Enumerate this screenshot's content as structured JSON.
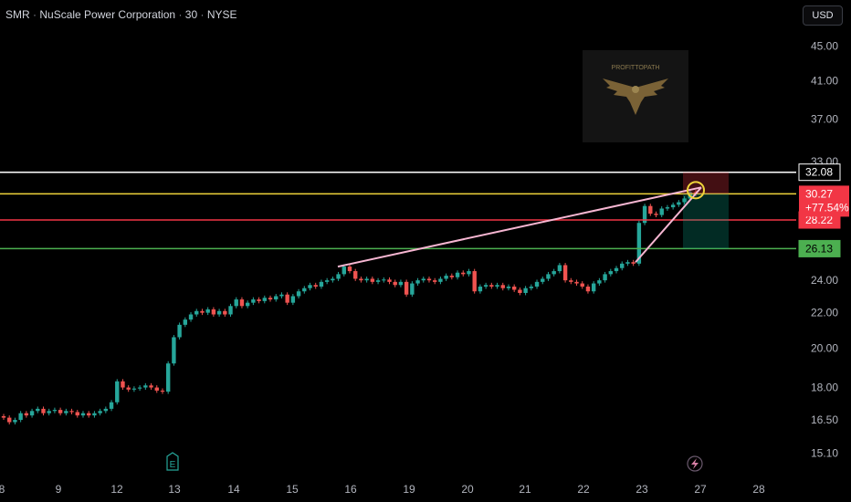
{
  "header": {
    "symbol": "SMR",
    "company": "NuScale Power Corporation",
    "interval": "30",
    "exchange": "NYSE",
    "separator": "·",
    "currency": "USD"
  },
  "watermark": {
    "text": "PROFITTOPATH"
  },
  "colors": {
    "up": "#26a69a",
    "down": "#ef5350",
    "line_white": "#ffffff",
    "line_yellow": "#f0d43a",
    "line_red": "#f23645",
    "line_green": "#4caf50",
    "trend": "#f7b6d2",
    "tag_price": "#f23645"
  },
  "chart_data": {
    "type": "candlestick",
    "y_scale": "log",
    "ylim": [
      14.6,
      48.5
    ],
    "y_ticks": [
      45.0,
      41.0,
      37.0,
      33.0,
      24.0,
      22.0,
      20.0,
      18.0,
      16.5,
      15.1
    ],
    "x_ticks": [
      {
        "label": "8",
        "t": 0
      },
      {
        "label": "9",
        "t": 62
      },
      {
        "label": "12",
        "t": 126
      },
      {
        "label": "13",
        "t": 189
      },
      {
        "label": "14",
        "t": 254
      },
      {
        "label": "15",
        "t": 318
      },
      {
        "label": "16",
        "t": 382
      },
      {
        "label": "19",
        "t": 446
      },
      {
        "label": "20",
        "t": 510
      },
      {
        "label": "21",
        "t": 573
      },
      {
        "label": "22",
        "t": 637
      },
      {
        "label": "23",
        "t": 701
      },
      {
        "label": "27",
        "t": 765
      },
      {
        "label": "28",
        "t": 829
      }
    ],
    "levels": [
      {
        "name": "stop",
        "value": 32.08,
        "label": "32.08",
        "color": "#ffffff"
      },
      {
        "name": "entry",
        "value": 30.27,
        "label": "30.27",
        "color": "#f0d43a"
      },
      {
        "name": "support",
        "value": 28.22,
        "label": "28.22",
        "color": "#f23645"
      },
      {
        "name": "target",
        "value": 26.13,
        "label": "26.13",
        "color": "#4caf50"
      }
    ],
    "last_price": {
      "value": 30.27,
      "label": "30.27",
      "change": "+77.54%"
    },
    "candles_closes": [
      16.6,
      16.4,
      16.5,
      16.8,
      16.7,
      16.9,
      17.0,
      16.8,
      16.9,
      16.95,
      16.8,
      16.9,
      16.85,
      16.7,
      16.8,
      16.7,
      16.8,
      16.9,
      17.0,
      17.3,
      18.3,
      18.0,
      17.9,
      17.95,
      18.0,
      18.1,
      18.0,
      17.85,
      17.8,
      19.2,
      20.6,
      21.3,
      21.6,
      21.9,
      22.1,
      22.0,
      22.2,
      21.9,
      22.1,
      21.9,
      22.4,
      22.8,
      22.4,
      22.6,
      22.8,
      22.7,
      22.9,
      22.8,
      23.0,
      23.1,
      22.6,
      23.0,
      23.3,
      23.5,
      23.7,
      23.6,
      23.9,
      24.0,
      24.1,
      24.4,
      24.9,
      24.6,
      24.1,
      24.0,
      24.1,
      23.9,
      24.0,
      24.05,
      23.9,
      23.7,
      23.9,
      23.1,
      23.8,
      24.0,
      24.1,
      24.0,
      23.9,
      24.1,
      24.3,
      24.2,
      24.5,
      24.4,
      24.6,
      23.3,
      23.6,
      23.7,
      23.6,
      23.7,
      23.5,
      23.6,
      23.4,
      23.2,
      23.5,
      23.6,
      23.9,
      24.1,
      24.4,
      24.6,
      25.0,
      24.0,
      23.9,
      23.8,
      23.6,
      23.3,
      23.8,
      24.0,
      24.4,
      24.6,
      24.8,
      25.1,
      25.2,
      25.1,
      28.0,
      29.3,
      28.7,
      28.6,
      29.1,
      29.2,
      29.4,
      29.6,
      29.9,
      30.4,
      30.27
    ],
    "trendlines": [
      {
        "from": {
          "t": 370,
          "v": 24.9
        },
        "to": {
          "t": 768,
          "v": 30.8
        }
      },
      {
        "from": {
          "t": 696,
          "v": 25.2
        },
        "to": {
          "t": 768,
          "v": 30.8
        }
      }
    ]
  }
}
